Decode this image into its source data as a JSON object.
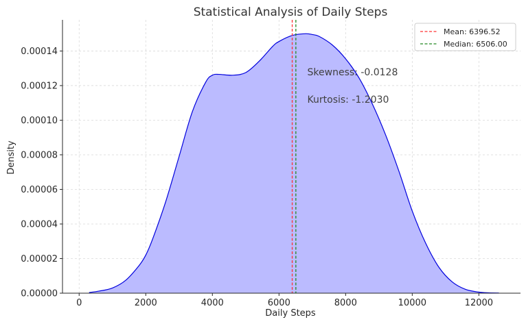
{
  "chart_data": {
    "type": "area",
    "title": "Statistical Analysis of Daily Steps",
    "xlabel": "Daily Steps",
    "ylabel": "Density",
    "xlim": [
      -500,
      13250
    ],
    "ylim": [
      0,
      0.000158
    ],
    "xticks": [
      0,
      2000,
      4000,
      6000,
      8000,
      10000,
      12000
    ],
    "yticks": [
      "0.00000",
      "0.00002",
      "0.00004",
      "0.00006",
      "0.00008",
      "0.00010",
      "0.00012",
      "0.00014"
    ],
    "ytick_values": [
      0,
      2e-05,
      4e-05,
      6e-05,
      8e-05,
      0.0001,
      0.00012,
      0.00014
    ],
    "grid": true,
    "legend_position": "top-right",
    "fill_color": "#bbbbff",
    "line_color": "#0000dd",
    "series": [
      {
        "x": [
          300,
          600,
          1000,
          1400,
          1800,
          2000,
          2200,
          2600,
          3000,
          3400,
          3800,
          4000,
          4200,
          4600,
          5000,
          5400,
          5800,
          6000,
          6400,
          6800,
          7000,
          7200,
          7600,
          8000,
          8400,
          8800,
          9200,
          9600,
          10000,
          10400,
          10800,
          11200,
          11600,
          12000,
          12300,
          12600
        ],
        "y": [
          4e-07,
          1.2e-06,
          3e-06,
          7.5e-06,
          1.6e-05,
          2.2e-05,
          3.1e-05,
          5.3e-05,
          7.9e-05,
          0.000105,
          0.000122,
          0.000126,
          0.0001265,
          0.000126,
          0.0001275,
          0.000134,
          0.0001425,
          0.0001455,
          0.000149,
          0.00015,
          0.0001495,
          0.0001485,
          0.0001435,
          0.0001355,
          0.0001245,
          0.0001095,
          9.15e-05,
          7.05e-05,
          4.75e-05,
          2.9e-05,
          1.5e-05,
          6.5e-06,
          2.2e-06,
          6e-07,
          2e-07,
          1e-07
        ]
      }
    ],
    "reference_lines": [
      {
        "name": "Mean: 6396.52",
        "x": 6396.52,
        "color": "#ff3333",
        "style": "dashed"
      },
      {
        "name": "Median: 6506.00",
        "x": 6506.0,
        "color": "#228822",
        "style": "dashed"
      }
    ],
    "annotations": [
      {
        "text": "Skewness: -0.0128",
        "x": 6850,
        "y": 0.000126
      },
      {
        "text": "Kurtosis: -1.2030",
        "x": 6850,
        "y": 0.00011
      }
    ]
  }
}
